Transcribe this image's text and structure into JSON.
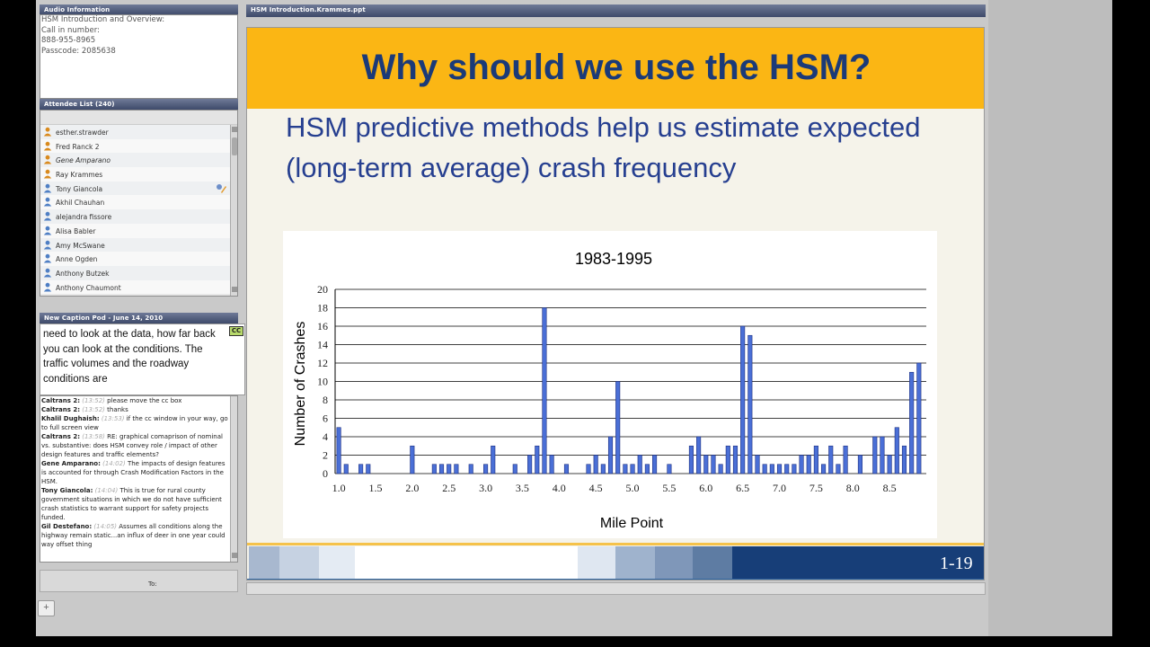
{
  "audio": {
    "title": "Audio Information",
    "lines": [
      "HSM Introduction and Overview:",
      "Call in number:",
      "888-955-8965",
      "Passcode: 2085638"
    ]
  },
  "attendees": {
    "title": "Attendee List (240)",
    "items": [
      {
        "name": "esther.strawder",
        "role": "host",
        "italic": false,
        "active": false
      },
      {
        "name": "Fred Ranck 2",
        "role": "host",
        "italic": false,
        "active": false
      },
      {
        "name": "Gene Amparano",
        "role": "host",
        "italic": true,
        "active": false
      },
      {
        "name": "Ray Krammes",
        "role": "host",
        "italic": false,
        "active": false
      },
      {
        "name": "Tony Giancola",
        "role": "participant",
        "italic": false,
        "active": true
      },
      {
        "name": "Akhil Chauhan",
        "role": "participant",
        "italic": false,
        "active": false
      },
      {
        "name": "alejandra fissore",
        "role": "participant",
        "italic": false,
        "active": false
      },
      {
        "name": "Alisa Babler",
        "role": "participant",
        "italic": false,
        "active": false
      },
      {
        "name": "Amy McSwane",
        "role": "participant",
        "italic": false,
        "active": false
      },
      {
        "name": "Anne Ogden",
        "role": "participant",
        "italic": false,
        "active": false
      },
      {
        "name": "Anthony Butzek",
        "role": "participant",
        "italic": false,
        "active": false
      },
      {
        "name": "Anthony Chaumont",
        "role": "participant",
        "italic": false,
        "active": false
      }
    ]
  },
  "caption": {
    "title": "New Caption Pod - June 14, 2010",
    "text": "need to look at the data, how far back you can look at the conditions. The traffic volumes and the roadway conditions are",
    "cc_label": "CC"
  },
  "chat": {
    "messages": [
      {
        "who": "Caltrans 2:",
        "time": "(13:52)",
        "text": "please move the cc box"
      },
      {
        "who": "Caltrans 2:",
        "time": "(13:52)",
        "text": "thanks"
      },
      {
        "who": "Khalil Dughaish:",
        "time": "(13:53)",
        "text": "if the cc window in your way, go to full screen view"
      },
      {
        "who": "Caltrans 2:",
        "time": "(13:58)",
        "text": "RE: graphical comaprison of nominal vs. substantive: does HSM convey role / impact of other design features and traffic elements?"
      },
      {
        "who": "Gene Amparano:",
        "time": "(14:02)",
        "text": "The impacts of design features is accounted for through Crash Modification Factors in the HSM."
      },
      {
        "who": "Tony Giancola:",
        "time": "(14:04)",
        "text": "This is true for rural county government situations in which we do not have sufficient crash statistics to warrant support for safety projects funded."
      },
      {
        "who": "Gil Destefano:",
        "time": "(14:05)",
        "text": "Assumes all conditions along the highway remain static...an influx of deer in one year could way offset thing"
      }
    ],
    "input_label": "To:"
  },
  "share": {
    "title": "HSM Introduction.Krammes.ppt"
  },
  "slide": {
    "title": "Why should we use the HSM?",
    "subtitle": "HSM predictive methods help us estimate expected (long-term average) crash frequency",
    "page": "1-19"
  },
  "colors": {
    "title_bar": "#fbb614",
    "title_text": "#1b3a78",
    "bar_fill": "#4a6fd6",
    "bar_stroke": "#1d2f80"
  },
  "chart_data": {
    "type": "bar",
    "title": "1983-1995",
    "xlabel": "Mile Point",
    "ylabel": "Number of Crashes",
    "ylim": [
      0,
      20
    ],
    "yticks": [
      0,
      2,
      4,
      6,
      8,
      10,
      12,
      14,
      16,
      18,
      20
    ],
    "xlim": [
      0.95,
      9.0
    ],
    "xticks": [
      "1.0",
      "1.5",
      "2.0",
      "2.5",
      "3.0",
      "3.5",
      "4.0",
      "4.5",
      "5.0",
      "5.5",
      "6.0",
      "6.5",
      "7.0",
      "7.5",
      "8.0",
      "8.5"
    ],
    "grid": true,
    "x": [
      1.0,
      1.1,
      1.3,
      1.4,
      2.0,
      2.3,
      2.4,
      2.5,
      2.6,
      2.8,
      3.0,
      3.1,
      3.4,
      3.6,
      3.7,
      3.8,
      3.9,
      4.1,
      4.4,
      4.5,
      4.6,
      4.7,
      4.8,
      4.9,
      5.0,
      5.1,
      5.2,
      5.3,
      5.5,
      5.8,
      5.9,
      6.0,
      6.1,
      6.2,
      6.3,
      6.4,
      6.5,
      6.6,
      6.7,
      6.8,
      6.9,
      7.0,
      7.1,
      7.2,
      7.3,
      7.4,
      7.5,
      7.6,
      7.7,
      7.8,
      7.9,
      8.1,
      8.3,
      8.4,
      8.5,
      8.6,
      8.7,
      8.8,
      8.9
    ],
    "values": [
      5,
      1,
      1,
      1,
      3,
      1,
      1,
      1,
      1,
      1,
      1,
      3,
      1,
      2,
      3,
      18,
      2,
      1,
      1,
      2,
      1,
      4,
      10,
      1,
      1,
      2,
      1,
      2,
      1,
      3,
      4,
      2,
      2,
      1,
      3,
      3,
      16,
      15,
      2,
      1,
      1,
      1,
      1,
      1,
      2,
      2,
      3,
      1,
      3,
      1,
      3,
      2,
      4,
      4,
      2,
      5,
      3,
      11,
      12
    ]
  }
}
